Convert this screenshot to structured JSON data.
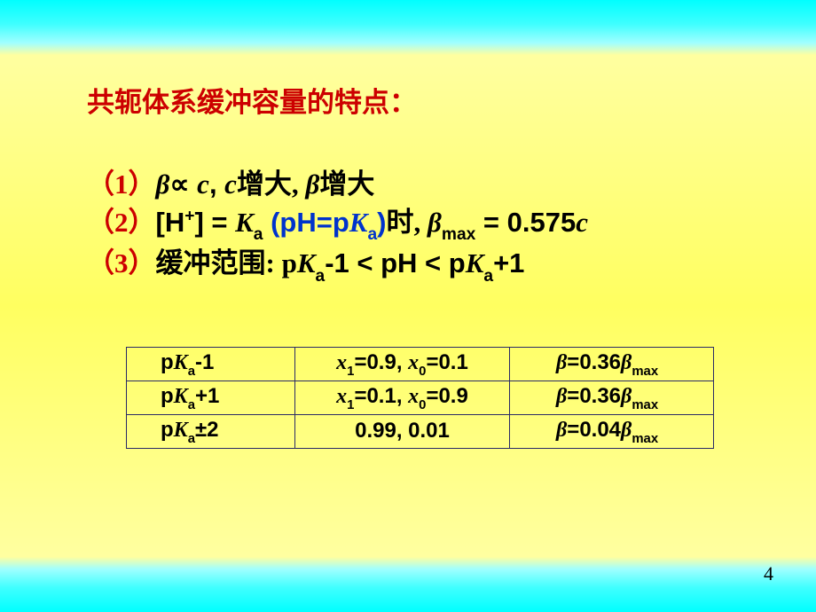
{
  "title": "共轭体系缓冲容量的特点：",
  "points": {
    "p1": {
      "num": "（1）",
      "a": "β",
      "b": "∝",
      "c": "c",
      "d": ",   ",
      "e": "c",
      "f": "增大, ",
      "g": "β",
      "h": "增大"
    },
    "p2": {
      "num": "（2）",
      "a": "[H",
      "sup": "+",
      "b": "] = ",
      "c": "K",
      "sub1": "a",
      "d": " (pH=p",
      "e": "K",
      "sub2": "a",
      "f": ")",
      "g": "时, ",
      "h": "β",
      "sub3": "max",
      "i": " = 0.575",
      "j": "c"
    },
    "p3": {
      "num": "（3）",
      "a": "缓冲范围: p",
      "b": "K",
      "sub1": "a",
      "c": "-1 < pH < p",
      "d": "K",
      "sub2": "a",
      "e": "+1"
    }
  },
  "table": {
    "rows": [
      {
        "c1a": "p",
        "c1b": "K",
        "c1sub": "a",
        "c1c": "-1",
        "c2a": "x",
        "c2s1": "1",
        "c2b": "=0.9, ",
        "c2c": "x",
        "c2s2": "0",
        "c2d": "=0.1",
        "c3a": "β",
        "c3b": "=0.36",
        "c3c": "β",
        "c3sub": "max"
      },
      {
        "c1a": "p",
        "c1b": "K",
        "c1sub": "a",
        "c1c": "+1",
        "c2a": "x",
        "c2s1": "1",
        "c2b": "=0.1, ",
        "c2c": "x",
        "c2s2": "0",
        "c2d": "=0.9",
        "c3a": "β",
        "c3b": "=0.36",
        "c3c": "β",
        "c3sub": "max"
      },
      {
        "c1a": "p",
        "c1b": "K",
        "c1sub": "a",
        "c1c": "±2",
        "c2plain": "0.99, 0.01",
        "c3a": "β",
        "c3b": "=0.04",
        "c3c": "β",
        "c3sub": "max"
      }
    ]
  },
  "pageNumber": "4",
  "colors": {
    "accent_red": "#cc0000",
    "accent_blue": "#0033cc",
    "table_border": "#2a2a66",
    "text": "#000000",
    "grad_top": "#00ffff",
    "grad_mid": "#ffff60"
  }
}
